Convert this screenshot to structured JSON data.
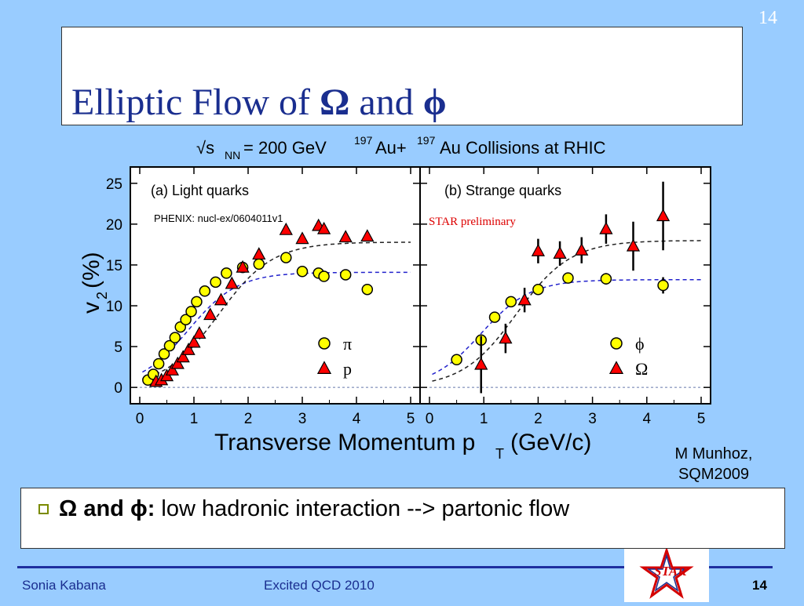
{
  "slide": {
    "page_number_top": "14",
    "title_prefix": "Elliptic Flow of ",
    "title_sym1": "Ω",
    "title_mid": " and ",
    "title_sym2": "ϕ",
    "credit_line1": "M Munhoz,",
    "credit_line2": "SQM2009",
    "bullet_sym1": "Ω",
    "bullet_and": " and ",
    "bullet_sym2": "ϕ",
    "bullet_colon": ":",
    "bullet_text": " low hadronic interaction --> partonic flow",
    "footer_author": "Sonia Kabana",
    "footer_conference": "Excited QCD 2010",
    "footer_page": "14",
    "logo_text": "STAR"
  },
  "chart_data": [
    {
      "type": "scatter",
      "figure_title": "√s_NN = 200 GeV 197Au+197Au Collisions at RHIC",
      "panel_label": "(a) Light quarks",
      "annotation": "PHENIX: nucl-ex/0604011v1",
      "xlabel": "Transverse Momentum p_T (GeV/c)",
      "ylabel": "v_2 (%)",
      "xlim": [
        0,
        5
      ],
      "ylim": [
        -2,
        27
      ],
      "xticks": [
        0,
        1,
        2,
        3,
        4,
        5
      ],
      "yticks": [
        0,
        5,
        10,
        15,
        20,
        25
      ],
      "series": [
        {
          "name": "π",
          "marker": "circle",
          "color": "#ffff00",
          "x": [
            0.15,
            0.25,
            0.35,
            0.45,
            0.55,
            0.65,
            0.75,
            0.85,
            0.95,
            1.05,
            1.2,
            1.4,
            1.6,
            1.9,
            2.2,
            2.7,
            3.0,
            3.3,
            3.4,
            3.8,
            4.2
          ],
          "y": [
            0.9,
            1.6,
            2.9,
            4.1,
            5.1,
            6.1,
            7.4,
            8.3,
            9.3,
            10.5,
            11.8,
            12.9,
            14.0,
            14.7,
            15.1,
            15.9,
            14.2,
            14.0,
            13.6,
            13.8,
            12.0
          ]
        },
        {
          "name": "p",
          "marker": "triangle",
          "color": "#ff0000",
          "x": [
            0.3,
            0.4,
            0.5,
            0.6,
            0.7,
            0.8,
            0.9,
            1.0,
            1.1,
            1.3,
            1.5,
            1.7,
            1.9,
            2.2,
            2.7,
            3.0,
            3.3,
            3.4,
            3.8,
            4.2
          ],
          "y": [
            0.7,
            0.9,
            1.4,
            2.1,
            2.9,
            3.7,
            4.6,
            5.5,
            6.6,
            8.9,
            10.7,
            12.7,
            14.7,
            16.3,
            19.3,
            18.2,
            19.8,
            19.4,
            18.4,
            18.5
          ]
        }
      ],
      "fits": [
        {
          "name": "π fit",
          "color": "#2222cc",
          "plateau": 14.1,
          "x0": 0.9,
          "k": 2.2
        },
        {
          "name": "p fit",
          "color": "#222222",
          "plateau": 17.8,
          "x0": 1.45,
          "k": 2.0
        }
      ]
    },
    {
      "type": "scatter",
      "panel_label": "(b) Strange quarks",
      "annotation": "STAR preliminary",
      "xlim": [
        0,
        5
      ],
      "ylim": [
        -2,
        27
      ],
      "xticks": [
        0,
        1,
        2,
        3,
        4,
        5
      ],
      "yticks": [
        0,
        5,
        10,
        15,
        20,
        25
      ],
      "series": [
        {
          "name": "ϕ",
          "marker": "circle",
          "color": "#ffff00",
          "x": [
            0.5,
            0.95,
            1.2,
            1.5,
            2.0,
            2.55,
            3.25,
            4.3
          ],
          "y": [
            3.4,
            5.8,
            8.6,
            10.5,
            12.0,
            13.4,
            13.3,
            12.5
          ],
          "yerr": [
            0.3,
            0.4,
            0.4,
            0.5,
            0.5,
            0.6,
            0.7,
            1.0
          ]
        },
        {
          "name": "Ω",
          "marker": "triangle",
          "color": "#ff0000",
          "x": [
            0.95,
            1.4,
            1.75,
            2.0,
            2.4,
            2.8,
            3.25,
            3.75,
            4.3
          ],
          "y": [
            2.8,
            6.0,
            10.7,
            16.7,
            16.4,
            16.8,
            19.4,
            17.3,
            21.0
          ],
          "yerr": [
            3.5,
            1.8,
            1.5,
            1.5,
            1.5,
            1.6,
            1.8,
            3.0,
            4.2
          ]
        }
      ],
      "fits": [
        {
          "name": "ϕ fit",
          "color": "#2222cc",
          "plateau": 13.2,
          "x0": 0.95,
          "k": 2.2
        },
        {
          "name": "Ω fit",
          "color": "#222222",
          "plateau": 18.0,
          "x0": 1.6,
          "k": 2.0
        }
      ]
    }
  ]
}
